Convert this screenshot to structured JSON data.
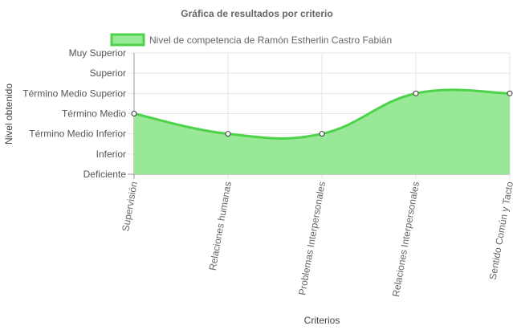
{
  "chart_data": {
    "type": "area",
    "title": "Gráfica de resultados por criterio",
    "xlabel": "Criterios",
    "ylabel": "Nivel obtenido",
    "categories": [
      "Supervisión",
      "Relaciones humanas",
      "Problemas Interpersonales",
      "Relaciones Interpersonales",
      "Sentido Común y Tacto"
    ],
    "y_levels": [
      "Deficiente",
      "Inferior",
      "Término Medio Inferior",
      "Término Medio",
      "Término Medio Superior",
      "Superior",
      "Muy Superior"
    ],
    "ylim": [
      0,
      6
    ],
    "series": [
      {
        "name": "Nivel de competencia de Ramón Estherlin Castro Fabián",
        "values": [
          3,
          2,
          2,
          4,
          4
        ],
        "value_labels": [
          "Término Medio",
          "Término Medio Inferior",
          "Término Medio Inferior",
          "Término Medio Superior",
          "Término Medio Superior"
        ]
      }
    ],
    "colors": {
      "fill": "#98e897",
      "line": "#4cd34a",
      "point_fill": "#ffffff",
      "point_stroke": "#333333"
    },
    "legend_position": "top",
    "grid": true
  }
}
